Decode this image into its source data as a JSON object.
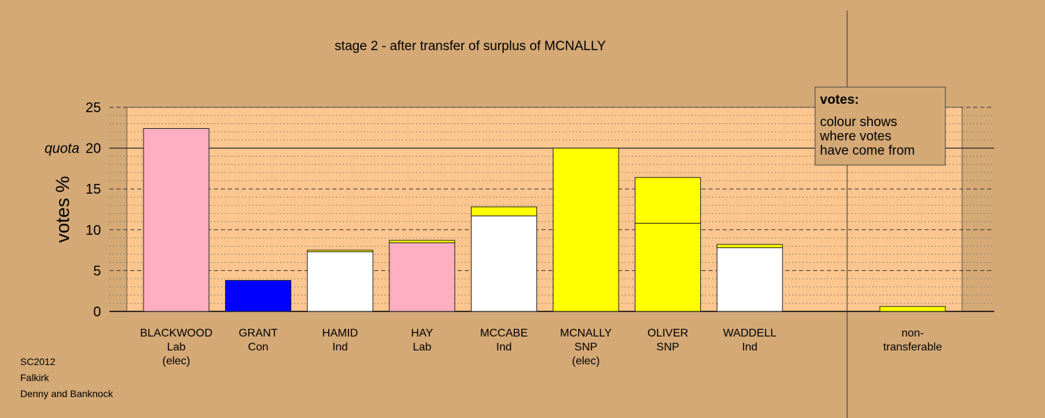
{
  "chart_data": {
    "type": "bar",
    "title": "stage 2 - after transfer of surplus of MCNALLY",
    "ylabel": "votes %",
    "ylim": [
      0,
      25
    ],
    "yticks": [
      0,
      5,
      10,
      15,
      20,
      25
    ],
    "quota": 20,
    "quota_label": "quota",
    "colors": {
      "Lab": "#ffafc1",
      "Con": "#0000ff",
      "Ind": "#ffffff",
      "SNP": "#ffff00",
      "plot_bg": "#fbc68f",
      "page_bg": "#d4a976"
    },
    "candidates": [
      {
        "name": "BLACKWOOD",
        "party": "Lab",
        "status": "(elec)",
        "segments": [
          {
            "from": "Lab",
            "value": 22.4
          }
        ]
      },
      {
        "name": "GRANT",
        "party": "Con",
        "status": "",
        "segments": [
          {
            "from": "Con",
            "value": 3.8
          }
        ]
      },
      {
        "name": "HAMID",
        "party": "Ind",
        "status": "",
        "segments": [
          {
            "from": "Ind",
            "value": 7.3
          },
          {
            "from": "SNP",
            "value": 0.2
          }
        ]
      },
      {
        "name": "HAY",
        "party": "Lab",
        "status": "",
        "segments": [
          {
            "from": "Lab",
            "value": 8.4
          },
          {
            "from": "SNP",
            "value": 0.3
          }
        ]
      },
      {
        "name": "MCCABE",
        "party": "Ind",
        "status": "",
        "segments": [
          {
            "from": "Ind",
            "value": 11.7
          },
          {
            "from": "SNP",
            "value": 1.1
          }
        ]
      },
      {
        "name": "MCNALLY",
        "party": "SNP",
        "status": "(elec)",
        "segments": [
          {
            "from": "SNP",
            "value": 20.0
          }
        ]
      },
      {
        "name": "OLIVER",
        "party": "SNP",
        "status": "",
        "segments": [
          {
            "from": "SNP",
            "value": 10.8
          },
          {
            "from": "SNP",
            "value": 5.6
          }
        ]
      },
      {
        "name": "WADDELL",
        "party": "Ind",
        "status": "",
        "segments": [
          {
            "from": "Ind",
            "value": 7.8
          },
          {
            "from": "SNP",
            "value": 0.4
          }
        ]
      }
    ],
    "non_transferable": {
      "label_line1": "non-",
      "label_line2": "transferable",
      "segments": [
        {
          "from": "SNP",
          "value": 0.6
        }
      ]
    },
    "legend": {
      "title": "votes:",
      "lines": [
        "colour shows",
        "where votes",
        "have come from"
      ],
      "position": "top-right"
    }
  },
  "footer": {
    "line1": "SC2012",
    "line2": "Falkirk",
    "line3": "Denny and Banknock"
  }
}
